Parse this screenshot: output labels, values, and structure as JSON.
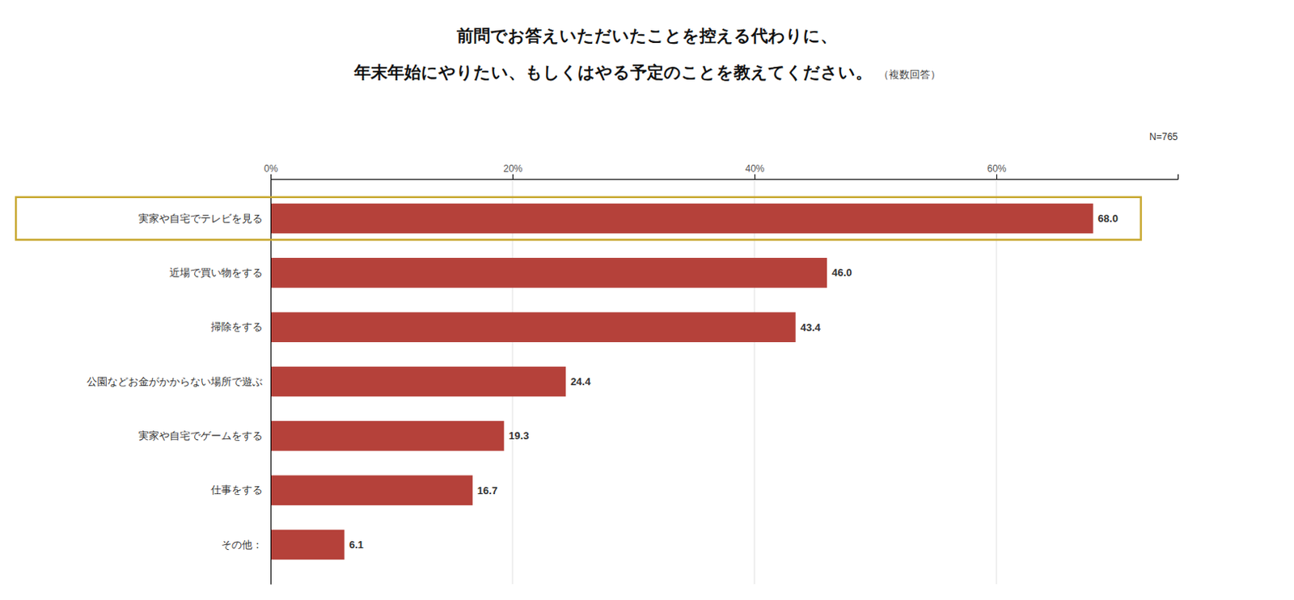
{
  "chart_data": {
    "type": "bar",
    "orientation": "horizontal",
    "title": "前問でお答えいただいたことを控える代わりに、",
    "subtitle": "年末年始にやりたい、もしくはやる予定のことを教えてください。",
    "annotations": [
      "（複数回答）",
      "N=765"
    ],
    "categories": [
      "実家や自宅でテレビを見る",
      "近場で買い物をする",
      "掃除をする",
      "公園などお金がかからない場所で遊ぶ",
      "実家や自宅でゲームをする",
      "仕事をする",
      "その他："
    ],
    "values": [
      68.0,
      46.0,
      43.4,
      24.4,
      19.3,
      16.7,
      6.1
    ],
    "value_labels": [
      "68.0",
      "46.0",
      "43.4",
      "24.4",
      "19.3",
      "16.7",
      "6.1"
    ],
    "data_labels": true,
    "color": "#b5413a",
    "xlim": [
      0,
      75
    ],
    "xticks": [
      {
        "value": 0,
        "label": "0%"
      },
      {
        "value": 20,
        "label": "20%"
      },
      {
        "value": 40,
        "label": "40%"
      },
      {
        "value": 60,
        "label": "60%"
      }
    ],
    "grid": true
  }
}
